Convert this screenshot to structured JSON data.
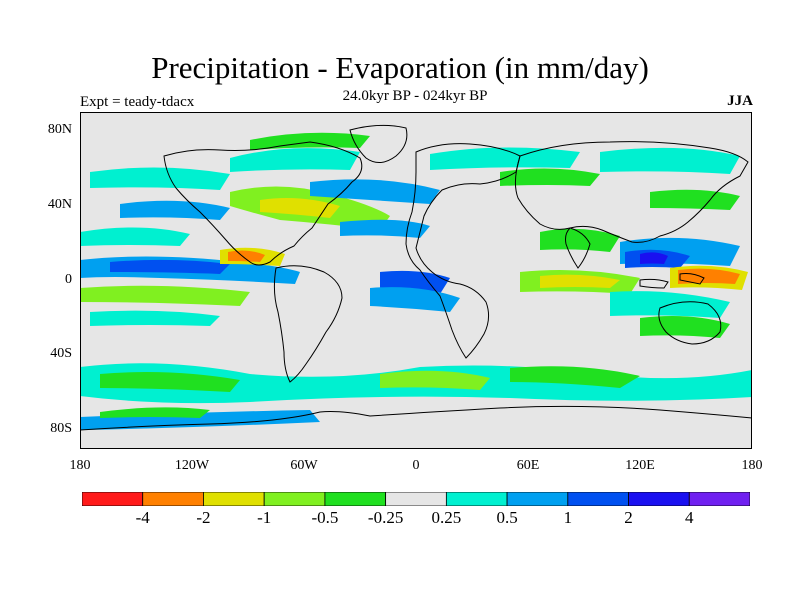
{
  "title": "Precipitation - Evaporation (in mm/day)",
  "subtitle": "24.0kyr BP - 024kyr BP",
  "left_label": "Expt = teady-tdacx",
  "right_label": "JJA",
  "map": {
    "lon_range": [
      -180,
      180
    ],
    "lat_range": [
      -90,
      90
    ],
    "ocean_color": "#e6e6e6",
    "coastline_color": "#000000",
    "lat_ticks": [
      {
        "value": 80,
        "label": "80N"
      },
      {
        "value": 40,
        "label": "40N"
      },
      {
        "value": 0,
        "label": "0"
      },
      {
        "value": -40,
        "label": "40S"
      },
      {
        "value": -80,
        "label": "80S"
      }
    ],
    "lon_ticks": [
      {
        "value": -180,
        "label": "180"
      },
      {
        "value": -120,
        "label": "120W"
      },
      {
        "value": -60,
        "label": "60W"
      },
      {
        "value": 0,
        "label": "0"
      },
      {
        "value": 60,
        "label": "60E"
      },
      {
        "value": 120,
        "label": "120E"
      },
      {
        "value": 180,
        "label": "180"
      }
    ]
  },
  "colorbar": {
    "colors": [
      "#ff1a1a",
      "#ff8000",
      "#e0e000",
      "#80f020",
      "#20e020",
      "#e6e6e6",
      "#00f0d0",
      "#00a0f0",
      "#0050f0",
      "#1a10f0",
      "#7020f0"
    ],
    "labels": [
      "-4",
      "-2",
      "-1",
      "-0.5",
      "-0.25",
      "0.25",
      "0.5",
      "1",
      "2",
      "4"
    ]
  }
}
